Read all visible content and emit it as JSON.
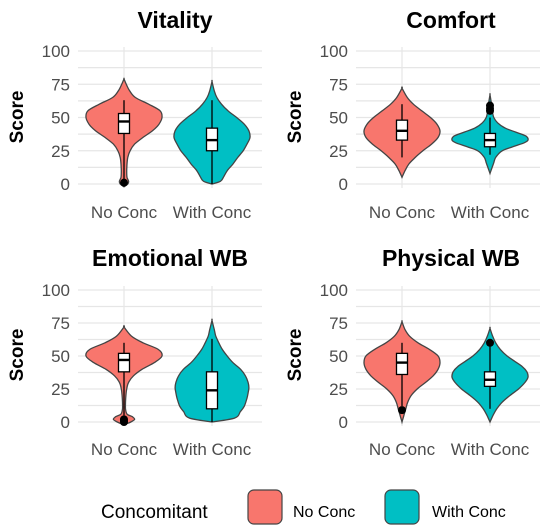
{
  "legend": {
    "title": "Concomitant",
    "entries": [
      {
        "label": "No Conc",
        "color": "#F8766D"
      },
      {
        "label": "With Conc",
        "color": "#00BFC4"
      }
    ]
  },
  "chart_data": [
    {
      "type": "violin",
      "title": "Vitality",
      "ylabel": "Score",
      "xlabel": "",
      "ylim": [
        0,
        100
      ],
      "yticks": [
        0,
        25,
        50,
        75,
        100
      ],
      "categories": [
        "No Conc",
        "With Conc"
      ],
      "groups": [
        {
          "category": "No Conc",
          "color": "#F8766D",
          "range": [
            -2,
            79
          ],
          "density": [
            [
              -2,
              0
            ],
            [
              0,
              0.1
            ],
            [
              2,
              0.12
            ],
            [
              5,
              0.08
            ],
            [
              10,
              0.07
            ],
            [
              15,
              0.08
            ],
            [
              20,
              0.1
            ],
            [
              25,
              0.16
            ],
            [
              30,
              0.28
            ],
            [
              35,
              0.5
            ],
            [
              40,
              0.75
            ],
            [
              45,
              0.92
            ],
            [
              50,
              1.0
            ],
            [
              55,
              0.95
            ],
            [
              60,
              0.65
            ],
            [
              65,
              0.3
            ],
            [
              70,
              0.15
            ],
            [
              75,
              0.06
            ],
            [
              79,
              0
            ]
          ],
          "box": {
            "min": 2,
            "q1": 38,
            "median": 47,
            "q3": 53,
            "max": 63
          },
          "outliers": [
            1
          ]
        },
        {
          "category": "With Conc",
          "color": "#00BFC4",
          "range": [
            0,
            77
          ],
          "density": [
            [
              0,
              0
            ],
            [
              2,
              0.22
            ],
            [
              5,
              0.3
            ],
            [
              10,
              0.4
            ],
            [
              15,
              0.55
            ],
            [
              20,
              0.68
            ],
            [
              25,
              0.82
            ],
            [
              30,
              0.92
            ],
            [
              35,
              1.0
            ],
            [
              40,
              0.97
            ],
            [
              45,
              0.85
            ],
            [
              50,
              0.65
            ],
            [
              55,
              0.42
            ],
            [
              60,
              0.25
            ],
            [
              65,
              0.13
            ],
            [
              70,
              0.06
            ],
            [
              77,
              0
            ]
          ],
          "box": {
            "min": 0,
            "q1": 25,
            "median": 33,
            "q3": 42,
            "max": 63
          },
          "outliers": []
        }
      ]
    },
    {
      "type": "violin",
      "title": "Comfort",
      "ylabel": "Score",
      "xlabel": "",
      "ylim": [
        0,
        100
      ],
      "yticks": [
        0,
        25,
        50,
        75,
        100
      ],
      "categories": [
        "No Conc",
        "With Conc"
      ],
      "groups": [
        {
          "category": "No Conc",
          "color": "#F8766D",
          "range": [
            5,
            72
          ],
          "density": [
            [
              5,
              0
            ],
            [
              10,
              0.08
            ],
            [
              15,
              0.18
            ],
            [
              20,
              0.35
            ],
            [
              25,
              0.55
            ],
            [
              30,
              0.78
            ],
            [
              35,
              0.95
            ],
            [
              40,
              1.0
            ],
            [
              45,
              0.92
            ],
            [
              50,
              0.75
            ],
            [
              55,
              0.52
            ],
            [
              60,
              0.3
            ],
            [
              65,
              0.14
            ],
            [
              72,
              0
            ]
          ],
          "box": {
            "min": 20,
            "q1": 33,
            "median": 40,
            "q3": 48,
            "max": 60
          },
          "outliers": []
        },
        {
          "category": "With Conc",
          "color": "#00BFC4",
          "range": [
            8,
            67
          ],
          "density": [
            [
              8,
              0
            ],
            [
              12,
              0.05
            ],
            [
              16,
              0.1
            ],
            [
              20,
              0.15
            ],
            [
              25,
              0.32
            ],
            [
              28,
              0.6
            ],
            [
              31,
              0.9
            ],
            [
              33,
              1.0
            ],
            [
              36,
              0.95
            ],
            [
              39,
              0.68
            ],
            [
              42,
              0.4
            ],
            [
              46,
              0.2
            ],
            [
              50,
              0.1
            ],
            [
              55,
              0.06
            ],
            [
              60,
              0.04
            ],
            [
              67,
              0
            ]
          ],
          "box": {
            "min": 22,
            "q1": 28,
            "median": 33,
            "q3": 38,
            "max": 50
          },
          "outliers": [
            55,
            57,
            59
          ]
        }
      ]
    },
    {
      "type": "violin",
      "title": "Emotional WB",
      "ylabel": "Score",
      "xlabel": "",
      "ylim": [
        0,
        100
      ],
      "yticks": [
        0,
        25,
        50,
        75,
        100
      ],
      "categories": [
        "No Conc",
        "With Conc"
      ],
      "groups": [
        {
          "category": "No Conc",
          "color": "#F8766D",
          "range": [
            -2,
            72
          ],
          "density": [
            [
              -2,
              0
            ],
            [
              0,
              0.18
            ],
            [
              2,
              0.28
            ],
            [
              4,
              0.22
            ],
            [
              6,
              0.08
            ],
            [
              10,
              0.04
            ],
            [
              15,
              0.04
            ],
            [
              20,
              0.05
            ],
            [
              25,
              0.07
            ],
            [
              30,
              0.12
            ],
            [
              35,
              0.25
            ],
            [
              40,
              0.48
            ],
            [
              45,
              0.8
            ],
            [
              50,
              1.0
            ],
            [
              55,
              0.9
            ],
            [
              60,
              0.5
            ],
            [
              65,
              0.2
            ],
            [
              72,
              0
            ]
          ],
          "box": {
            "min": 5,
            "q1": 38,
            "median": 47,
            "q3": 52,
            "max": 60
          },
          "outliers": [
            0,
            1,
            2
          ]
        },
        {
          "category": "With Conc",
          "color": "#00BFC4",
          "range": [
            0,
            77
          ],
          "density": [
            [
              0,
              0
            ],
            [
              3,
              0.6
            ],
            [
              8,
              0.75
            ],
            [
              12,
              0.85
            ],
            [
              18,
              0.92
            ],
            [
              22,
              0.95
            ],
            [
              26,
              0.97
            ],
            [
              30,
              0.95
            ],
            [
              35,
              0.88
            ],
            [
              40,
              0.75
            ],
            [
              45,
              0.55
            ],
            [
              50,
              0.4
            ],
            [
              55,
              0.27
            ],
            [
              60,
              0.18
            ],
            [
              65,
              0.1
            ],
            [
              70,
              0.06
            ],
            [
              77,
              0
            ]
          ],
          "box": {
            "min": 0,
            "q1": 10,
            "median": 24,
            "q3": 38,
            "max": 63
          },
          "outliers": []
        }
      ]
    },
    {
      "type": "violin",
      "title": "Physical WB",
      "ylabel": "Score",
      "xlabel": "",
      "ylim": [
        0,
        100
      ],
      "yticks": [
        0,
        25,
        50,
        75,
        100
      ],
      "categories": [
        "No Conc",
        "With Conc"
      ],
      "groups": [
        {
          "category": "No Conc",
          "color": "#F8766D",
          "range": [
            0,
            76
          ],
          "density": [
            [
              0,
              0
            ],
            [
              5,
              0.05
            ],
            [
              10,
              0.1
            ],
            [
              15,
              0.15
            ],
            [
              20,
              0.24
            ],
            [
              25,
              0.4
            ],
            [
              30,
              0.62
            ],
            [
              35,
              0.82
            ],
            [
              40,
              0.95
            ],
            [
              45,
              1.0
            ],
            [
              50,
              0.95
            ],
            [
              55,
              0.72
            ],
            [
              60,
              0.42
            ],
            [
              65,
              0.2
            ],
            [
              70,
              0.08
            ],
            [
              76,
              0
            ]
          ],
          "box": {
            "min": 12,
            "q1": 36,
            "median": 45,
            "q3": 52,
            "max": 60
          },
          "outliers": [
            9
          ]
        },
        {
          "category": "With Conc",
          "color": "#00BFC4",
          "range": [
            0,
            71
          ],
          "density": [
            [
              0,
              0
            ],
            [
              5,
              0.08
            ],
            [
              10,
              0.18
            ],
            [
              15,
              0.32
            ],
            [
              20,
              0.52
            ],
            [
              25,
              0.75
            ],
            [
              30,
              0.92
            ],
            [
              34,
              1.0
            ],
            [
              38,
              0.97
            ],
            [
              42,
              0.85
            ],
            [
              46,
              0.65
            ],
            [
              50,
              0.45
            ],
            [
              55,
              0.27
            ],
            [
              60,
              0.15
            ],
            [
              65,
              0.07
            ],
            [
              71,
              0
            ]
          ],
          "box": {
            "min": 10,
            "q1": 27,
            "median": 32,
            "q3": 38,
            "max": 60
          },
          "outliers": [
            60
          ]
        }
      ]
    }
  ]
}
